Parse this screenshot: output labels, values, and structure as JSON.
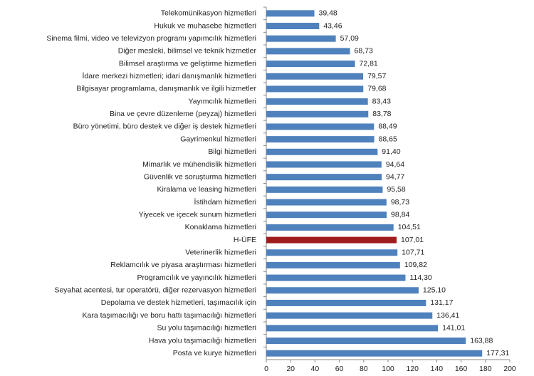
{
  "chart_data": {
    "type": "bar",
    "orientation": "horizontal",
    "categories": [
      "Telekomünikasyon hizmetleri",
      "Hukuk ve muhasebe hizmetleri",
      "Sinema filmi, video ve televizyon programı yapımcılık hizmetleri",
      "Diğer mesleki, bilimsel ve teknik hizmetler",
      "Bilimsel araştırma ve geliştirme hizmetleri",
      "İdare merkezi hizmetleri; idari danışmanlık hizmetleri",
      "Bilgisayar programlama, danışmanlık ve ilgili hizmetler",
      "Yayımcılık hizmetleri",
      "Bina ve çevre düzenleme (peyzaj) hizmetleri",
      "Büro yönetimi, büro destek ve diğer iş destek hizmetleri",
      "Gayrimenkul hizmetleri",
      "Bilgi hizmetleri",
      "Mimarlık ve mühendislik hizmetleri",
      "Güvenlik ve soruşturma hizmetleri",
      "Kiralama ve leasing hizmetleri",
      "İstihdam hizmetleri",
      "Yiyecek ve içecek sunum hizmetleri",
      "Konaklama hizmetleri",
      "H-ÜFE",
      "Veterinerlik hizmetleri",
      "Reklamcılık ve piyasa araştırması hizmetleri",
      "Programcılık ve yayıncılık hizmetleri",
      "Seyahat acentesi, tur operatörü, diğer rezervasyon hizmetleri",
      "Depolama ve destek hizmetleri, taşımacılık için",
      "Kara taşımacılığı ve boru hattı taşımacılığı hizmetleri",
      "Su yolu taşımacılığı hizmetleri",
      "Hava yolu taşımacılığı hizmetleri",
      "Posta ve kurye hizmetleri"
    ],
    "values": [
      39.48,
      43.46,
      57.09,
      68.73,
      72.81,
      79.57,
      79.68,
      83.43,
      83.78,
      88.49,
      88.65,
      91.4,
      94.64,
      94.77,
      95.58,
      98.73,
      98.84,
      104.51,
      107.01,
      107.71,
      109.82,
      114.3,
      125.1,
      131.17,
      136.41,
      141.01,
      163.88,
      177.31
    ],
    "value_labels": [
      "39,48",
      "43,46",
      "57,09",
      "68,73",
      "72,81",
      "79,57",
      "79,68",
      "83,43",
      "83,78",
      "88,49",
      "88,65",
      "91,40",
      "94,64",
      "94,77",
      "95,58",
      "98,73",
      "98,84",
      "104,51",
      "107,01",
      "107,71",
      "109,82",
      "114,30",
      "125,10",
      "131,17",
      "136,41",
      "141,01",
      "163,88",
      "177,31"
    ],
    "colors": [
      "#4f81bd",
      "#4f81bd",
      "#4f81bd",
      "#4f81bd",
      "#4f81bd",
      "#4f81bd",
      "#4f81bd",
      "#4f81bd",
      "#4f81bd",
      "#4f81bd",
      "#4f81bd",
      "#4f81bd",
      "#4f81bd",
      "#4f81bd",
      "#4f81bd",
      "#4f81bd",
      "#4f81bd",
      "#4f81bd",
      "#a01c1c",
      "#4f81bd",
      "#4f81bd",
      "#4f81bd",
      "#4f81bd",
      "#4f81bd",
      "#4f81bd",
      "#4f81bd",
      "#4f81bd",
      "#4f81bd"
    ],
    "xlim": [
      0,
      200
    ],
    "xticks": [
      0,
      20,
      40,
      60,
      80,
      100,
      120,
      140,
      160,
      180,
      200
    ],
    "grid": false
  }
}
